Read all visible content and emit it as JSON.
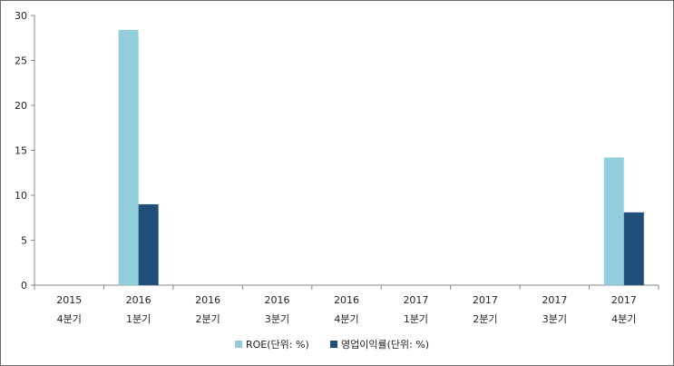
{
  "chart_data": {
    "type": "bar",
    "categories": [
      [
        "2015",
        "4분기"
      ],
      [
        "2016",
        "1분기"
      ],
      [
        "2016",
        "2분기"
      ],
      [
        "2016",
        "3분기"
      ],
      [
        "2016",
        "4분기"
      ],
      [
        "2017",
        "1분기"
      ],
      [
        "2017",
        "2분기"
      ],
      [
        "2017",
        "3분기"
      ],
      [
        "2017",
        "4분기"
      ]
    ],
    "series": [
      {
        "name": "ROE(단위: %)",
        "color": "#92CDDC",
        "values": [
          0,
          28.4,
          0,
          0,
          0,
          0,
          0,
          0,
          14.2
        ]
      },
      {
        "name": "영업이익률(단위: %)",
        "color": "#1F4E79",
        "values": [
          0,
          9.0,
          0,
          0,
          0,
          0,
          0,
          0,
          8.1
        ]
      }
    ],
    "ylim": [
      0,
      30
    ],
    "yticks": [
      0,
      5,
      10,
      15,
      20,
      25,
      30
    ],
    "grid": false,
    "legend": "bottom"
  }
}
